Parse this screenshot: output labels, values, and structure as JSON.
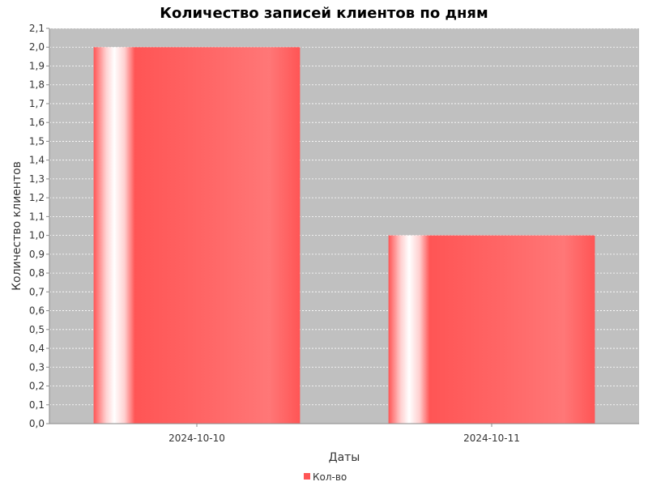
{
  "chart_data": {
    "type": "bar",
    "title": "Количество записей клиентов по дням",
    "xlabel": "Даты",
    "ylabel": "Количество клиентов",
    "categories": [
      "2024-10-10",
      "2024-10-11"
    ],
    "series": [
      {
        "name": "Кол-во",
        "values": [
          2.0,
          1.0
        ],
        "color": "#ff5555"
      }
    ],
    "ylim": [
      0,
      2.1
    ],
    "ytick_step": 0.1,
    "ytick_labels": [
      "0,0",
      "0,1",
      "0,2",
      "0,3",
      "0,4",
      "0,5",
      "0,6",
      "0,7",
      "0,8",
      "0,9",
      "1,0",
      "1,1",
      "1,2",
      "1,3",
      "1,4",
      "1,5",
      "1,6",
      "1,7",
      "1,8",
      "1,9",
      "2,0",
      "2,1"
    ],
    "grid": true,
    "legend_position": "bottom-center",
    "plot_background": "#c0c0c0",
    "grid_color": "#ffffff"
  }
}
